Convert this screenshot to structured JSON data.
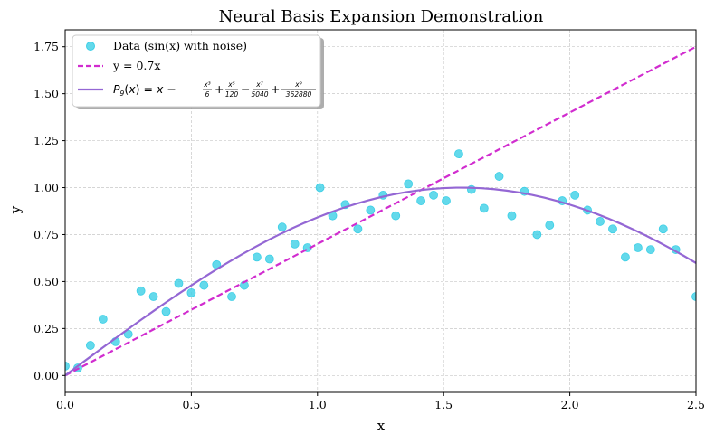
{
  "chart_data": {
    "type": "scatter",
    "title": "Neural Basis Expansion Demonstration",
    "xlabel": "x",
    "ylabel": "y",
    "xlim": [
      0.0,
      2.5
    ],
    "ylim": [
      -0.09,
      1.84
    ],
    "xticks": [
      0.0,
      0.5,
      1.0,
      1.5,
      2.0,
      2.5
    ],
    "xtick_labels": [
      "0.0",
      "0.5",
      "1.0",
      "1.5",
      "2.0",
      "2.5"
    ],
    "yticks": [
      0.0,
      0.25,
      0.5,
      0.75,
      1.0,
      1.25,
      1.5,
      1.75
    ],
    "ytick_labels": [
      "0.00",
      "0.25",
      "0.50",
      "0.75",
      "1.00",
      "1.25",
      "1.50",
      "1.75"
    ],
    "grid": true,
    "legend_position": "top-left",
    "series": [
      {
        "name": "Data (sin(x) with noise)",
        "kind": "scatter",
        "color": "#3ccfe6",
        "x": [
          0.0,
          0.05,
          0.1,
          0.15,
          0.2,
          0.25,
          0.3,
          0.35,
          0.4,
          0.45,
          0.5,
          0.55,
          0.6,
          0.66,
          0.71,
          0.76,
          0.81,
          0.86,
          0.91,
          0.96,
          1.01,
          1.06,
          1.11,
          1.16,
          1.21,
          1.26,
          1.31,
          1.36,
          1.41,
          1.46,
          1.51,
          1.56,
          1.61,
          1.66,
          1.72,
          1.77,
          1.82,
          1.87,
          1.92,
          1.97,
          2.02,
          2.07,
          2.12,
          2.17,
          2.22,
          2.27,
          2.32,
          2.37,
          2.42,
          2.5
        ],
        "y": [
          0.05,
          0.04,
          0.16,
          0.3,
          0.18,
          0.22,
          0.45,
          0.42,
          0.34,
          0.49,
          0.44,
          0.48,
          0.59,
          0.42,
          0.48,
          0.63,
          0.62,
          0.79,
          0.7,
          0.68,
          1.0,
          0.85,
          0.91,
          0.78,
          0.88,
          0.96,
          0.85,
          1.02,
          0.93,
          0.96,
          0.93,
          1.18,
          0.99,
          0.89,
          1.06,
          0.85,
          0.98,
          0.75,
          0.8,
          0.93,
          0.96,
          0.88,
          0.82,
          0.78,
          0.63,
          0.68,
          0.67,
          0.78,
          0.67,
          0.42
        ]
      },
      {
        "name": "y = 0.7x",
        "kind": "line",
        "style": "dashed",
        "color": "#d12ccf",
        "x": [
          0.0,
          2.5
        ],
        "y": [
          0.0,
          1.75
        ]
      },
      {
        "name": "P9(x) = x - x³/6 + x⁵/120 - x⁷/5040 + x⁹/362880",
        "kind": "line",
        "style": "solid",
        "color": "#9467d4",
        "x": [
          0.0,
          0.05,
          0.1,
          0.15,
          0.2,
          0.25,
          0.3,
          0.35,
          0.4,
          0.45,
          0.5,
          0.55,
          0.6,
          0.65,
          0.7,
          0.75,
          0.8,
          0.85,
          0.9,
          0.95,
          1.0,
          1.05,
          1.1,
          1.15,
          1.2,
          1.25,
          1.3,
          1.35,
          1.4,
          1.45,
          1.5,
          1.55,
          1.6,
          1.65,
          1.7,
          1.75,
          1.8,
          1.85,
          1.9,
          1.95,
          2.0,
          2.05,
          2.1,
          2.15,
          2.2,
          2.25,
          2.3,
          2.35,
          2.4,
          2.45,
          2.5
        ],
        "y": [
          0.0,
          0.05,
          0.0998,
          0.1494,
          0.1987,
          0.2474,
          0.2955,
          0.3429,
          0.3894,
          0.435,
          0.4794,
          0.5227,
          0.5646,
          0.6052,
          0.6442,
          0.6816,
          0.7174,
          0.7513,
          0.7833,
          0.8134,
          0.8415,
          0.8674,
          0.8912,
          0.9128,
          0.932,
          0.949,
          0.9636,
          0.9757,
          0.9854,
          0.9927,
          0.9975,
          0.9998,
          0.9996,
          0.9969,
          0.9917,
          0.984,
          0.9738,
          0.9613,
          0.9463,
          0.9289,
          0.9093,
          0.8874,
          0.8632,
          0.8369,
          0.8085,
          0.778,
          0.7457,
          0.7115,
          0.6756,
          0.638,
          0.5987
        ]
      }
    ]
  }
}
